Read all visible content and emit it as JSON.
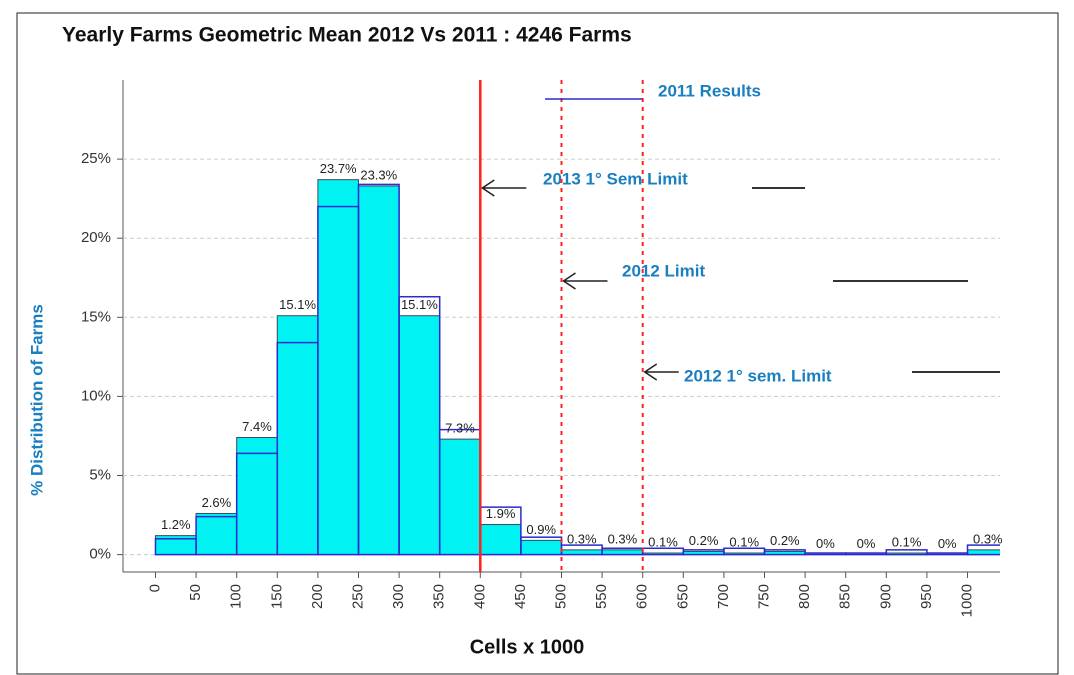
{
  "chart_data": {
    "type": "histogram",
    "title": "Yearly Farms Geometric Mean 2012 Vs 2011 : 4246 Farms",
    "xlabel": "Cells x 1000",
    "ylabel": "% Distribution of Farms",
    "bins": [
      0,
      50,
      100,
      150,
      200,
      250,
      300,
      350,
      400,
      450,
      500,
      550,
      600,
      650,
      700,
      750,
      800,
      850,
      900,
      950,
      1000,
      1050
    ],
    "series": [
      {
        "color": "#00f2f2",
        "values": [
          1.2,
          2.6,
          7.4,
          15.1,
          23.7,
          23.3,
          15.1,
          7.3,
          1.9,
          0.9,
          0.3,
          0.3,
          0.1,
          0.2,
          0.1,
          0.2,
          0,
          0,
          0.1,
          0,
          0.3
        ],
        "value_labels": [
          "1.2%",
          "2.6%",
          "7.4%",
          "15.1%",
          "23.7%",
          "23.3%",
          "15.1%",
          "7.3%",
          "1.9%",
          "0.9%",
          "0.3%",
          "0.3%",
          "0.1%",
          "0.2%",
          "0.1%",
          "0.2%",
          "0%",
          "0%",
          "0.1%",
          "0%",
          "0.3%"
        ]
      },
      {
        "name": "2011 Results",
        "color": "#2b2bd0",
        "style": "outline",
        "values": [
          1.0,
          2.4,
          6.4,
          13.4,
          22.0,
          23.4,
          16.3,
          7.9,
          3.0,
          1.1,
          0.6,
          0.4,
          0.4,
          0.3,
          0.4,
          0.3,
          0.1,
          0.1,
          0.3,
          0.1,
          0.6
        ]
      }
    ],
    "vlines": [
      {
        "x": 400,
        "color": "#ff2020",
        "dashed": false,
        "label": "2013 1° Sem Limit"
      },
      {
        "x": 500,
        "color": "#ff2020",
        "dashed": true,
        "label": "2012 Limit"
      },
      {
        "x": 600,
        "color": "#ff2020",
        "dashed": true,
        "label": "2012 1° sem. Limit"
      }
    ],
    "xlim": [
      -40,
      1040
    ],
    "ylim": [
      -1.1,
      30
    ],
    "xticks": [
      0,
      50,
      100,
      150,
      200,
      250,
      300,
      350,
      400,
      450,
      500,
      550,
      600,
      650,
      700,
      750,
      800,
      850,
      900,
      950,
      1000
    ],
    "yticks": [
      {
        "value": 0,
        "label": "0%"
      },
      {
        "value": 5,
        "label": "5%"
      },
      {
        "value": 10,
        "label": "10%"
      },
      {
        "value": 15,
        "label": "15%"
      },
      {
        "value": 20,
        "label": "20%"
      },
      {
        "value": 25,
        "label": "25%"
      }
    ],
    "grid": true
  }
}
